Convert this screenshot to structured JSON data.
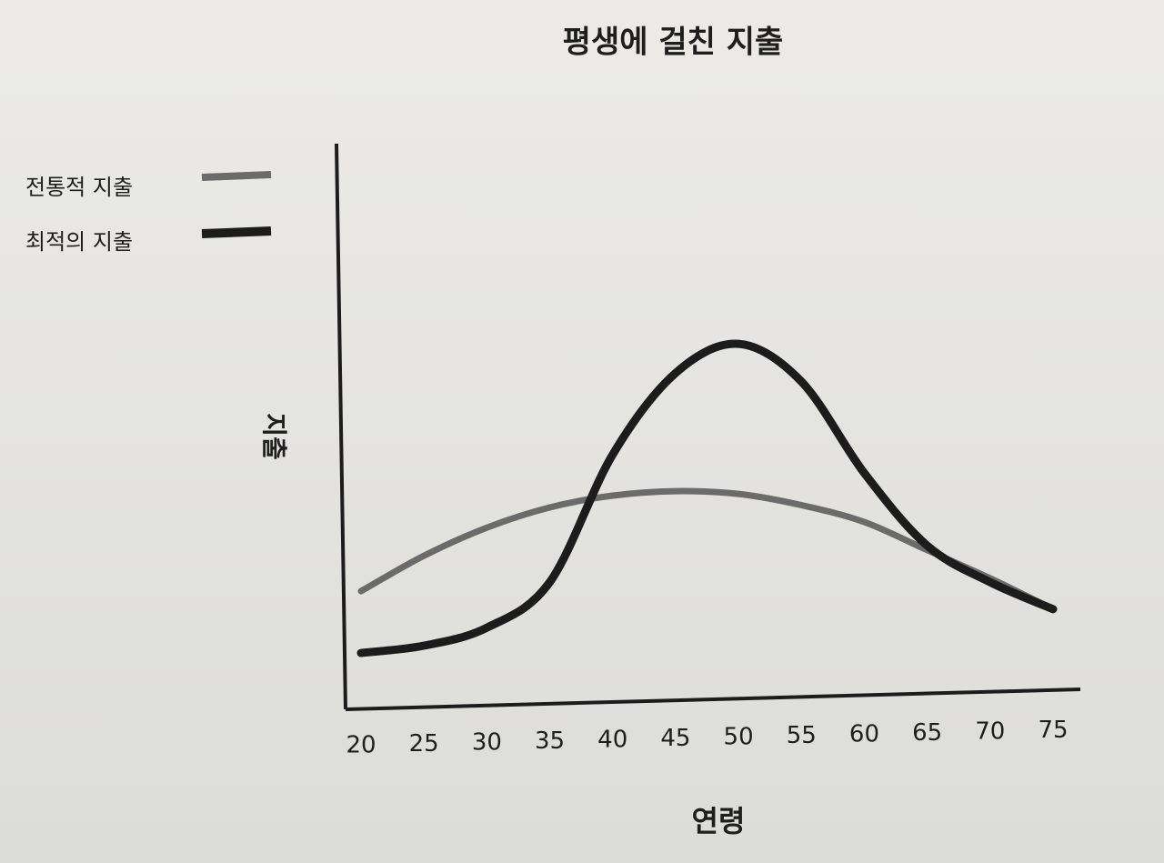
{
  "chart_data": {
    "type": "line",
    "title": "평생에 걸친 지출",
    "x_label": "연령",
    "y_label": "지출",
    "x": [
      20,
      25,
      30,
      35,
      40,
      45,
      50,
      55,
      60,
      65,
      70,
      75
    ],
    "xlim": [
      20,
      75
    ],
    "xticks": [
      20,
      25,
      30,
      35,
      40,
      45,
      50,
      55,
      60,
      65,
      70,
      75
    ],
    "ylim": [
      0,
      100
    ],
    "grid": false,
    "legend": "top-left",
    "series": [
      {
        "name": "전통적 지출",
        "color": "#6b6b6b",
        "width": 7,
        "values": [
          20.7,
          27,
          32,
          35.6,
          37.7,
          38.5,
          38,
          36,
          33,
          28,
          23,
          17.5
        ]
      },
      {
        "name": "최적의 지출",
        "color": "#1c1c1c",
        "width": 9,
        "values": [
          9.7,
          11,
          14.2,
          22.3,
          45,
          59.5,
          64.7,
          58,
          41.7,
          28.8,
          22.3,
          17.5
        ]
      }
    ]
  }
}
